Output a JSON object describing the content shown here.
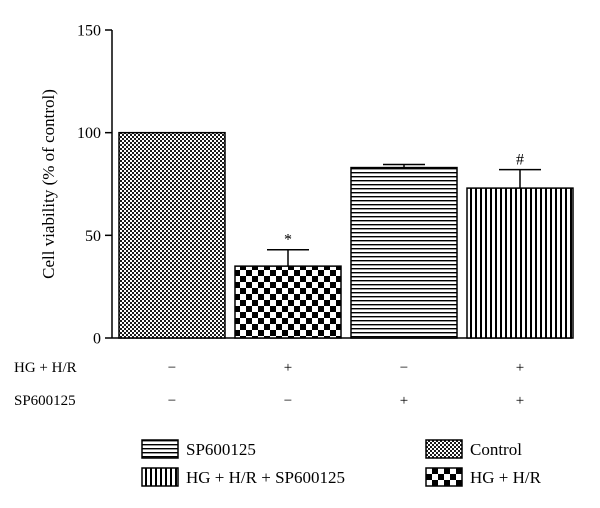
{
  "chart_data": {
    "type": "bar",
    "ylabel": "Cell viability (% of control)",
    "ylim": [
      0,
      150
    ],
    "yticks": [
      0,
      50,
      100,
      150
    ],
    "grid": false,
    "categories": [
      "Control",
      "HG + H/R",
      "SP600125",
      "HG + H/R + SP600125"
    ],
    "values": [
      100,
      35,
      83,
      73
    ],
    "errors": [
      0,
      8,
      1.5,
      9
    ],
    "patterns": [
      "checker-fine",
      "checker-coarse",
      "horizontal-lines",
      "vertical-lines"
    ],
    "annotations": [
      "",
      "*",
      "",
      "#"
    ],
    "condition_rows": [
      {
        "label": "HG + H/R",
        "values": [
          "−",
          "+",
          "−",
          "+"
        ]
      },
      {
        "label": "SP600125",
        "values": [
          "−",
          "−",
          "+",
          "+"
        ]
      }
    ],
    "legend": {
      "placement": "bottom",
      "entries": [
        {
          "label": "SP600125",
          "pattern": "horizontal-lines"
        },
        {
          "label": "Control",
          "pattern": "checker-fine"
        },
        {
          "label": "HG + H/R + SP600125",
          "pattern": "vertical-lines"
        },
        {
          "label": "HG + H/R",
          "pattern": "checker-coarse"
        }
      ]
    }
  }
}
